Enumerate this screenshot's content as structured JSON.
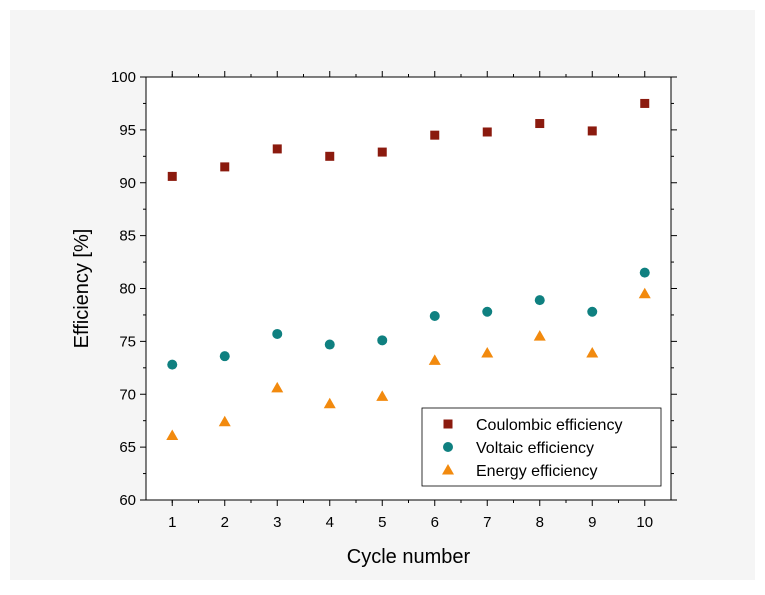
{
  "chart_data": {
    "type": "scatter",
    "title": "",
    "xlabel": "Cycle number",
    "ylabel": "Efficiency [%]",
    "x": [
      1,
      2,
      3,
      4,
      5,
      6,
      7,
      8,
      9,
      10
    ],
    "xlim": [
      0.5,
      10.5
    ],
    "ylim": [
      60,
      100
    ],
    "xticks": [
      1,
      2,
      3,
      4,
      5,
      6,
      7,
      8,
      9,
      10
    ],
    "yticks": [
      60,
      65,
      70,
      75,
      80,
      85,
      90,
      95,
      100
    ],
    "grid": false,
    "legend_position": "bottom-right",
    "series": [
      {
        "name": "Coulombic efficiency",
        "marker": "square",
        "color": "#8b1a0e",
        "values": [
          90.6,
          91.5,
          93.2,
          92.5,
          92.9,
          94.5,
          94.8,
          95.6,
          94.9,
          97.5
        ]
      },
      {
        "name": "Voltaic efficiency",
        "marker": "circle",
        "color": "#0f8080",
        "values": [
          72.8,
          73.6,
          75.7,
          74.7,
          75.1,
          77.4,
          77.8,
          78.9,
          77.8,
          81.5
        ]
      },
      {
        "name": "Energy efficiency",
        "marker": "triangle",
        "color": "#f28a0e",
        "values": [
          66.1,
          67.4,
          70.6,
          69.1,
          69.8,
          73.2,
          73.9,
          75.5,
          73.9,
          79.5
        ]
      }
    ]
  }
}
